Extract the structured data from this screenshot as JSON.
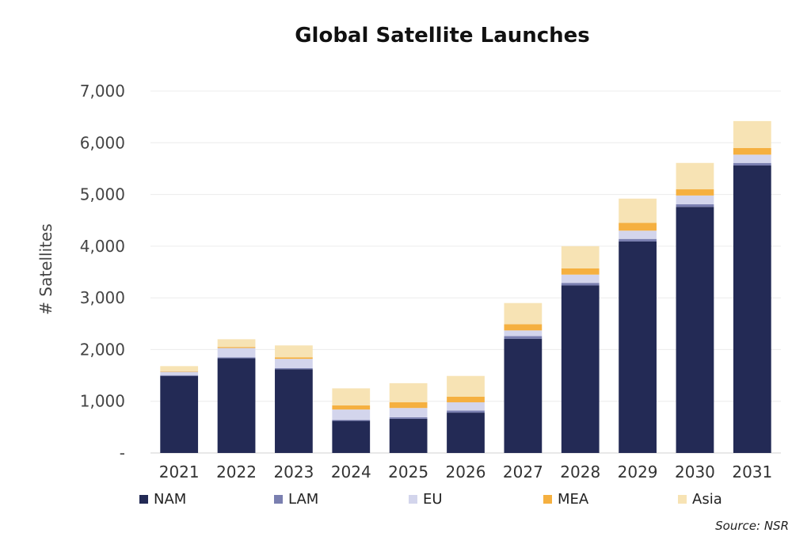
{
  "chart_data": {
    "type": "bar",
    "stacked": true,
    "title": "Global Satellite Launches",
    "ylabel": "# Satellites",
    "xlabel": "",
    "ylim": [
      0,
      7000
    ],
    "yticks": [
      0,
      1000,
      2000,
      3000,
      4000,
      5000,
      6000,
      7000
    ],
    "ytick_labels": [
      "-",
      "1,000",
      "2,000",
      "3,000",
      "4,000",
      "5,000",
      "6,000",
      "7,000"
    ],
    "grid": true,
    "legend_position": "bottom",
    "categories": [
      "2021",
      "2022",
      "2023",
      "2024",
      "2025",
      "2026",
      "2027",
      "2028",
      "2029",
      "2030",
      "2031"
    ],
    "series": [
      {
        "name": "NAM",
        "color": "#232a55",
        "values": [
          1490,
          1830,
          1620,
          620,
          660,
          780,
          2210,
          3240,
          4090,
          4760,
          5560
        ]
      },
      {
        "name": "LAM",
        "color": "#7a7fb0",
        "values": [
          15,
          20,
          20,
          20,
          30,
          40,
          50,
          50,
          50,
          50,
          50
        ]
      },
      {
        "name": "EU",
        "color": "#d3d5ec",
        "values": [
          65,
          180,
          180,
          200,
          180,
          160,
          110,
          160,
          160,
          170,
          160
        ]
      },
      {
        "name": "MEA",
        "color": "#f5b040",
        "values": [
          10,
          20,
          30,
          80,
          110,
          110,
          120,
          120,
          150,
          120,
          130
        ]
      },
      {
        "name": "Asia",
        "color": "#f7e3b4",
        "values": [
          100,
          150,
          230,
          330,
          370,
          400,
          410,
          430,
          470,
          510,
          520
        ]
      }
    ],
    "source": "Source: NSR"
  }
}
